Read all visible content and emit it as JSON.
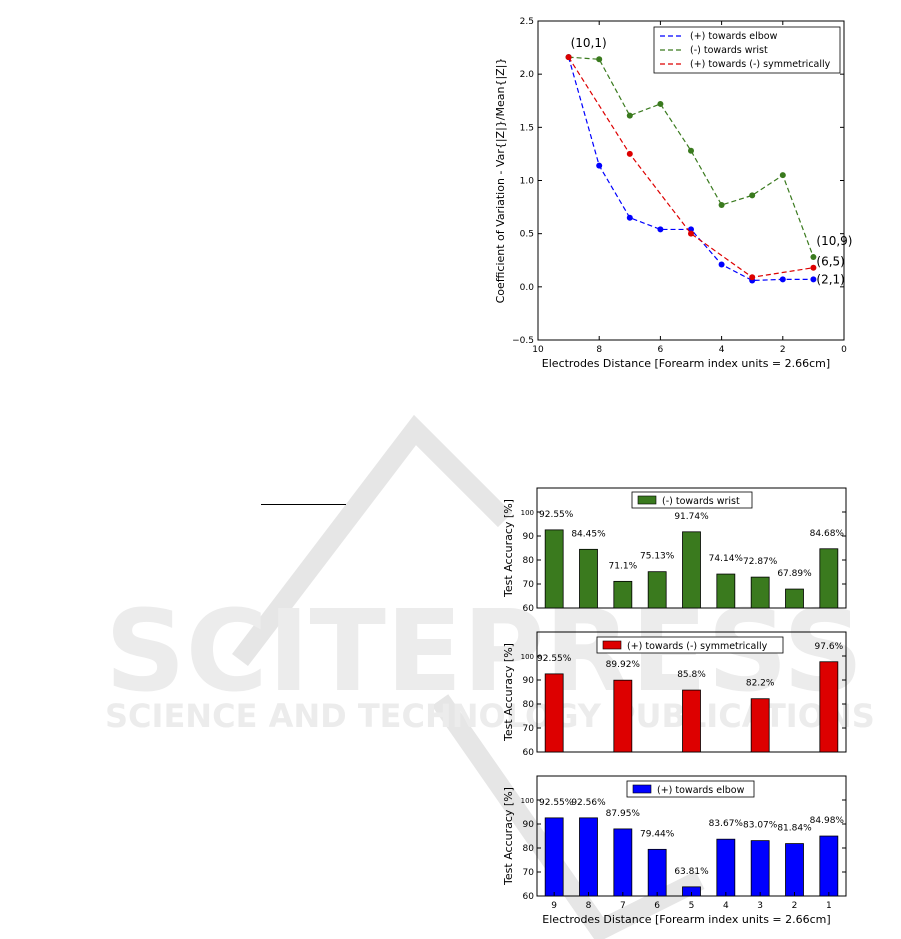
{
  "watermark": {
    "word1": "SCITEPRESS",
    "word2": "SCIENCE AND TECHNOLOGY PUBLICATIONS"
  },
  "chart_data": [
    {
      "type": "line",
      "xlabel": "Electrodes Distance [Forearm index units = 2.66cm]",
      "ylabel": "Coefficient of Variation - Var{|Z|}/Mean{|Z|}",
      "xlim": [
        10,
        0
      ],
      "ylim": [
        -0.5,
        2.5
      ],
      "xticks": [
        "10",
        "8",
        "6",
        "4",
        "2",
        "0"
      ],
      "yticks": [
        "−0.5",
        "0.0",
        "0.5",
        "1.0",
        "1.5",
        "2.0",
        "2.5"
      ],
      "grid": false,
      "legend": "top-right",
      "series": [
        {
          "name": "(+) towards elbow",
          "color": "#0000ff",
          "x": [
            9,
            8,
            7,
            6,
            5,
            4,
            3,
            2,
            1
          ],
          "y": [
            2.16,
            1.14,
            0.65,
            0.54,
            0.54,
            0.21,
            0.06,
            0.07,
            0.07
          ]
        },
        {
          "name": "(-) towards wrist",
          "color": "#3a7a1e",
          "x": [
            9,
            8,
            7,
            6,
            5,
            4,
            3,
            2,
            1
          ],
          "y": [
            2.16,
            2.14,
            1.61,
            1.72,
            1.28,
            0.77,
            0.86,
            1.05,
            0.28
          ]
        },
        {
          "name": "(+) towards (-) symmetrically",
          "color": "#dd0000",
          "x": [
            9,
            7,
            5,
            3,
            1
          ],
          "y": [
            2.16,
            1.25,
            0.5,
            0.09,
            0.18
          ]
        }
      ],
      "annotations": [
        {
          "text": "(10,1)",
          "x": 9,
          "y": 2.16
        },
        {
          "text": "(10,9)",
          "x": 1,
          "y": 0.28
        },
        {
          "text": "(6,5)",
          "x": 1,
          "y": 0.18
        },
        {
          "text": "(2,1)",
          "x": 1,
          "y": 0.07
        }
      ]
    },
    {
      "type": "bar",
      "ylabel": "Test Accuracy [%]",
      "ylim": [
        60,
        110
      ],
      "yticks": [
        "60",
        "70",
        "80",
        "90",
        "100"
      ],
      "legend": "top-center",
      "series": [
        {
          "name": "(-) towards wrist",
          "color": "#3a7a1e",
          "x": [
            9,
            8,
            7,
            6,
            5,
            4,
            3,
            2,
            1
          ],
          "values": [
            92.55,
            84.45,
            71.1,
            75.13,
            91.74,
            74.14,
            72.87,
            67.89,
            84.68
          ],
          "labels": [
            "92.55%",
            "84.45%",
            "71.1%",
            "75.13%",
            "91.74%",
            "74.14%",
            "72.87%",
            "67.89%",
            "84.68%"
          ]
        }
      ]
    },
    {
      "type": "bar",
      "ylabel": "Test Accuracy [%]",
      "ylim": [
        60,
        110
      ],
      "yticks": [
        "60",
        "70",
        "80",
        "90",
        "100"
      ],
      "legend": "top-center",
      "series": [
        {
          "name": "(+) towards (-) symmetrically",
          "color": "#dd0000",
          "x": [
            9,
            7,
            5,
            3,
            1
          ],
          "values": [
            92.55,
            89.92,
            85.8,
            82.2,
            97.6
          ],
          "labels": [
            "92.55%",
            "89.92%",
            "85.8%",
            "82.2%",
            "97.6%"
          ]
        }
      ]
    },
    {
      "type": "bar",
      "xlabel": "Electrodes Distance [Forearm index units = 2.66cm]",
      "ylabel": "Test Accuracy [%]",
      "ylim": [
        60,
        110
      ],
      "yticks": [
        "60",
        "70",
        "80",
        "90",
        "100"
      ],
      "xticks": [
        "9",
        "8",
        "7",
        "6",
        "5",
        "4",
        "3",
        "2",
        "1"
      ],
      "legend": "top-center",
      "series": [
        {
          "name": "(+) towards elbow",
          "color": "#0000ff",
          "x": [
            9,
            8,
            7,
            6,
            5,
            4,
            3,
            2,
            1
          ],
          "values": [
            92.55,
            92.56,
            87.95,
            79.44,
            63.81,
            83.67,
            83.07,
            81.84,
            84.98
          ],
          "labels": [
            "92.55%",
            "92.56%",
            "87.95%",
            "79.44%",
            "63.81%",
            "83.67%",
            "83.07%",
            "81.84%",
            "84.98%"
          ]
        }
      ]
    }
  ]
}
